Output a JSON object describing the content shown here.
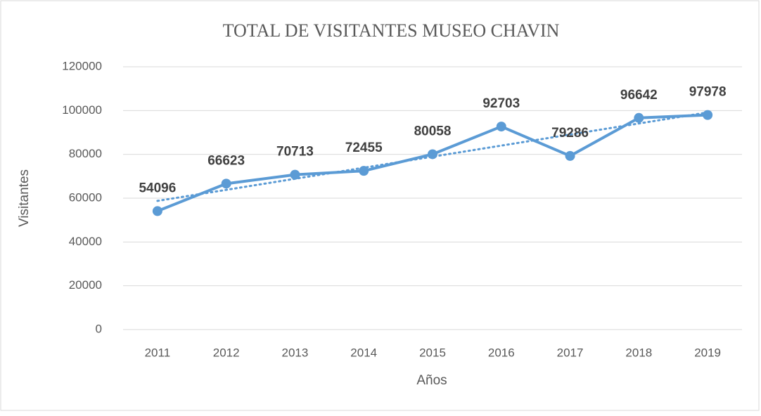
{
  "chart_data": {
    "type": "line",
    "title": "TOTAL DE VISITANTES MUSEO CHAVIN",
    "x_label": "Años",
    "y_label": "Visitantes",
    "categories": [
      "2011",
      "2012",
      "2013",
      "2014",
      "2015",
      "2016",
      "2017",
      "2018",
      "2019"
    ],
    "series": [
      {
        "name": "Visitantes",
        "color": "#5b9bd5",
        "values": [
          54096,
          66623,
          70713,
          72455,
          80058,
          92703,
          79286,
          96642,
          97978
        ]
      }
    ],
    "ylim": [
      0,
      120000
    ],
    "yticks": [
      0,
      20000,
      40000,
      60000,
      80000,
      100000,
      120000
    ],
    "grid": true,
    "trendline": "linear",
    "data_labels": true
  }
}
